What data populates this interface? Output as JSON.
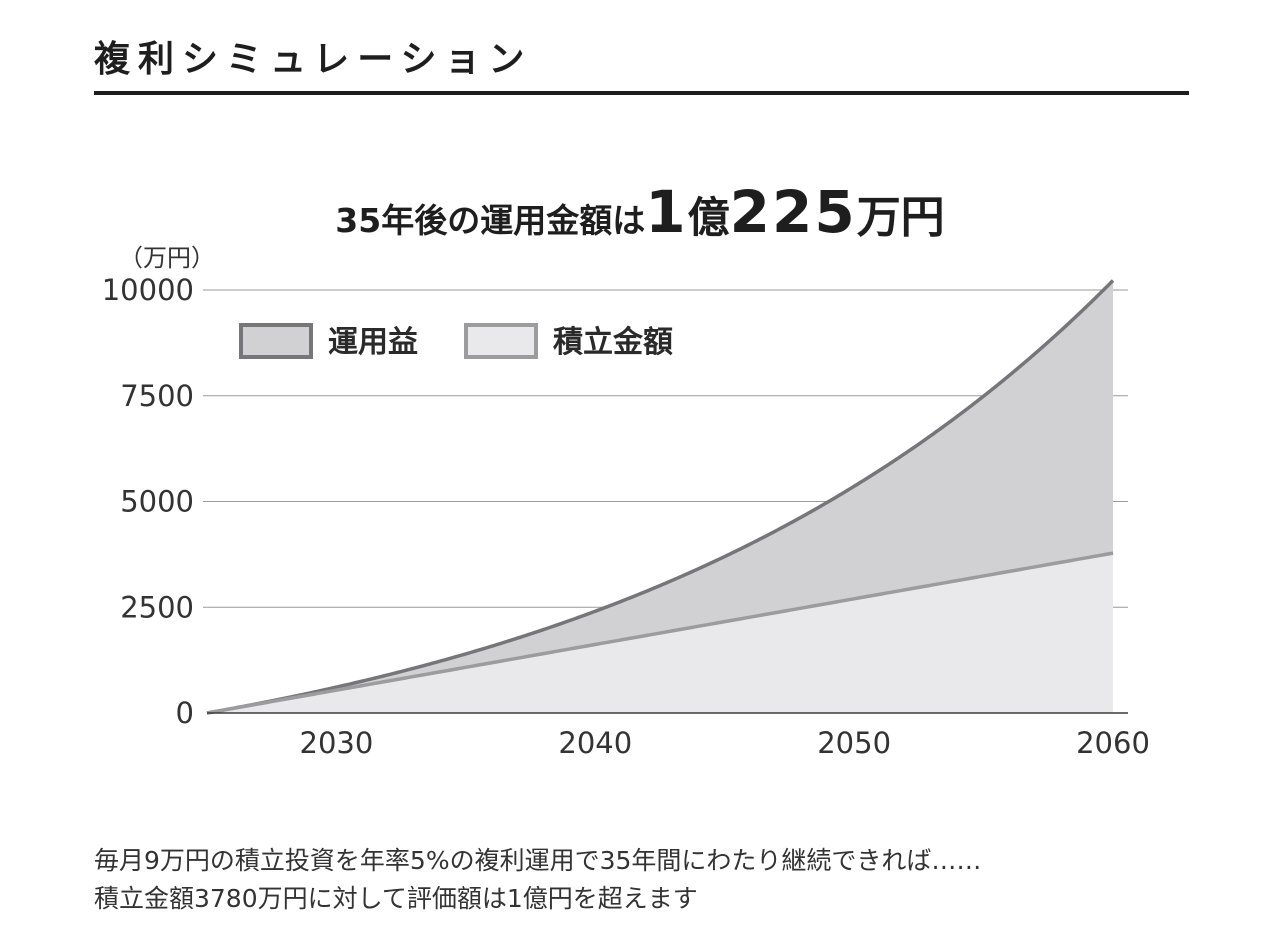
{
  "page": {
    "title": "複利シミュレーション"
  },
  "headline": {
    "lead": "35年後の運用金額は",
    "big1": "1",
    "mid": "億",
    "big2": "225",
    "unit": "万円"
  },
  "caption": {
    "line1": "毎月9万円の積立投資を年率5%の複利運用で35年間にわたり継続できれば……",
    "line2": "積立金額3780万円に対して評価額は1億円を超えます"
  },
  "colors": {
    "gain_fill": "#d1d1d3",
    "gain_line": "#76767a",
    "principal_fill": "#e9e9eb",
    "principal_line": "#9c9c9f",
    "grid": "#9a9a9a",
    "axis": "#3a3a3a",
    "text": "#333333"
  },
  "chart_data": {
    "type": "area",
    "title": "35年後の運用金額は1億225万円",
    "ylabel": "（万円）",
    "xlabel": "",
    "xlim": [
      2025,
      2060
    ],
    "ylim": [
      0,
      10000
    ],
    "x_ticks": [
      2030,
      2040,
      2050,
      2060
    ],
    "y_ticks": [
      0,
      2500,
      5000,
      7500,
      10000
    ],
    "grid": true,
    "legend_position": "top-left",
    "stacked": true,
    "monthly_contribution": 9,
    "annual_rate": 0.05,
    "years": 35,
    "x": [
      2025,
      2030,
      2035,
      2040,
      2045,
      2050,
      2055,
      2060
    ],
    "series": [
      {
        "name": "積立金額",
        "role": "principal",
        "values": [
          0,
          540,
          1080,
          1620,
          2160,
          2700,
          3240,
          3780
        ]
      },
      {
        "name": "運用益",
        "role": "gain",
        "values": [
          0,
          72,
          317,
          788,
          1543,
          2667,
          4281,
          6445
        ]
      }
    ],
    "totals": [
      0,
      612,
      1397,
      2408,
      3703,
      5367,
      7521,
      10225
    ],
    "final_total": 10225,
    "final_principal": 3780
  }
}
